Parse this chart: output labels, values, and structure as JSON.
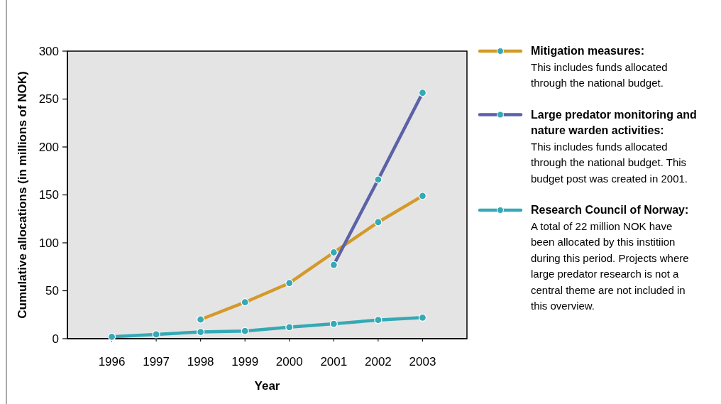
{
  "chart_data": {
    "type": "line",
    "xlabel": "Year",
    "ylabel": "Cumulative allocations (in millions of NOK)",
    "categories": [
      "1996",
      "1997",
      "1998",
      "1999",
      "2000",
      "2001",
      "2002",
      "2003"
    ],
    "ylim": [
      0,
      300
    ],
    "yticks": [
      0,
      50,
      100,
      150,
      200,
      250,
      300
    ],
    "grid": false,
    "legend": "right",
    "marker": "circle",
    "line_style": "solid",
    "series": [
      {
        "name": "Mitigation measures:",
        "color": "#d39a2a",
        "values": [
          null,
          null,
          20,
          38,
          58,
          90,
          121.5,
          149
        ]
      },
      {
        "name": "Large predator monitoring and nature warden activities:",
        "color": "#5b62a8",
        "values": [
          null,
          null,
          null,
          null,
          null,
          77,
          166,
          256.5
        ]
      },
      {
        "name": "Research Council of Norway:",
        "color": "#35a9b5",
        "values": [
          2,
          4.5,
          7,
          8,
          12,
          15.5,
          19.5,
          22
        ]
      }
    ],
    "annotations": [
      "This includes funds allocated through the national budget.",
      "This includes funds allocated through the national budget. This budget post was created in 2001.",
      "A total of 22 million NOK have been allocated by this institiion during this period. Projects where large predator research is not a central theme are not included in this overview."
    ]
  }
}
